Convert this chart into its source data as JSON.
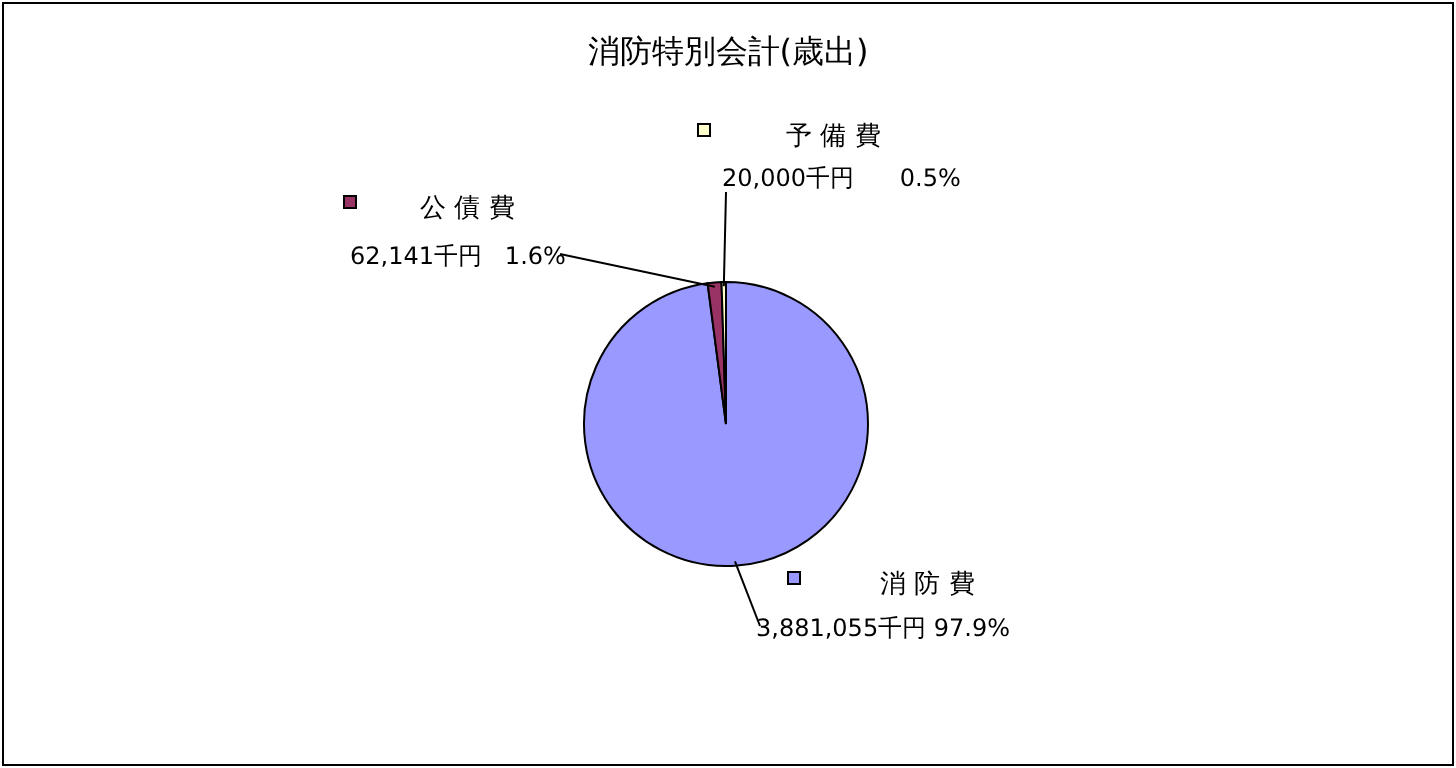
{
  "chart_data": {
    "type": "pie",
    "title": "消防特別会計(歳出)",
    "categories": [
      "消 防 費",
      "公 債 費",
      "予 備 費"
    ],
    "values": [
      3881055,
      62141,
      20000
    ],
    "colors": [
      "#9999ff",
      "#993366",
      "#ffffcc"
    ],
    "value_labels": [
      "3,881,055千円 97.9%",
      "62,141千円   1.6%",
      "20,000千円      0.5%"
    ]
  }
}
